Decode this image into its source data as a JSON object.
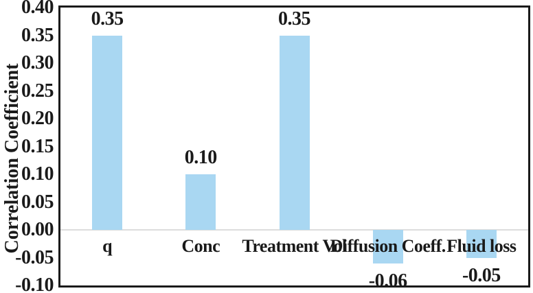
{
  "chart_data": {
    "type": "bar",
    "title": "",
    "xlabel": "",
    "ylabel": "Correlation Coefficient",
    "categories": [
      "q",
      "Conc",
      "Treatment Vol",
      "Diffusion Coeff.",
      "Fluid loss"
    ],
    "values": [
      0.35,
      0.1,
      0.35,
      -0.06,
      -0.05
    ],
    "value_labels": [
      "0.35",
      "0.10",
      "0.35",
      "-0.06",
      "-0.05"
    ],
    "ylim": [
      -0.1,
      0.4
    ],
    "ytick_step": 0.05,
    "ytick_labels": [
      "0.40",
      "0.35",
      "0.30",
      "0.25",
      "0.20",
      "0.15",
      "0.10",
      "0.05",
      "0.00",
      "-0.05",
      "-0.10"
    ],
    "grid": "zero-line-only",
    "legend": "none",
    "bar_color": "#A9D7F2",
    "zero_line_color": "#DCDCDC",
    "frame_color": "#1a1a1a",
    "text_color": "#1a1a1a",
    "background_color": "#ffffff"
  }
}
